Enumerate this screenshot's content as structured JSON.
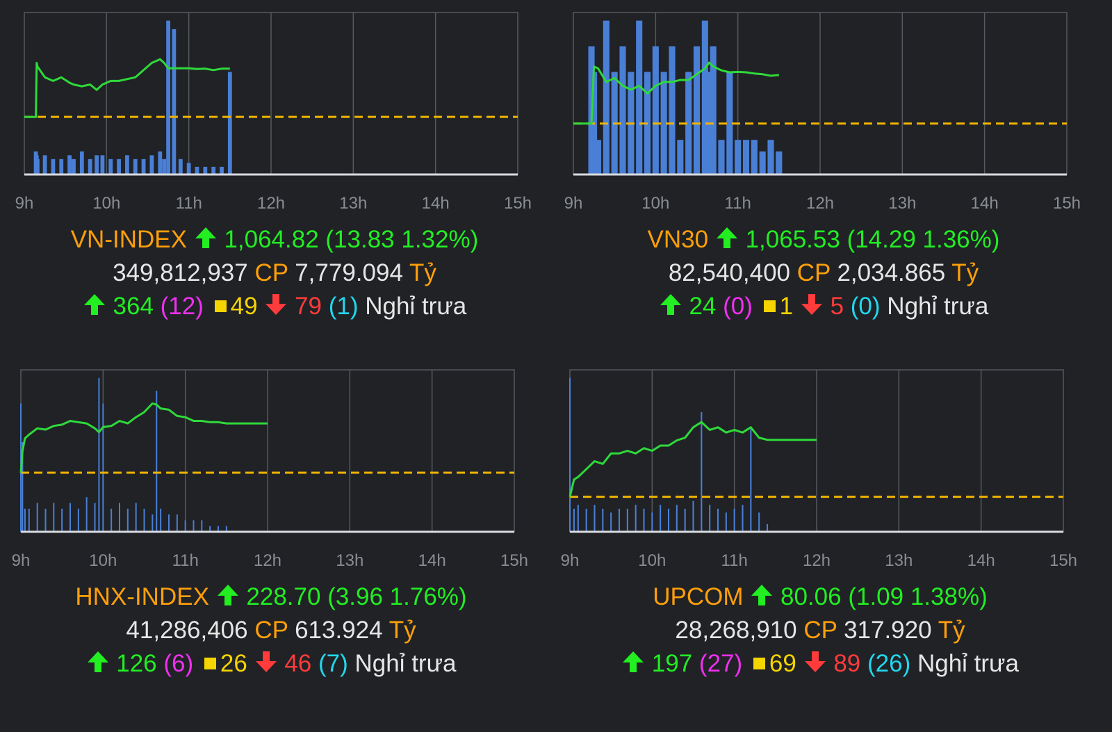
{
  "colors": {
    "background": "#202226",
    "grid": "#55585e",
    "price_line": "#2fd93a",
    "ref_line": "#f0b400",
    "volume_bar": "#4a7fd6",
    "up": "#22ee22",
    "down": "#ff3b3b",
    "unchanged": "#f5d400",
    "ceiling": "#f030f0",
    "floor": "#22d8ee",
    "index_name": "#ff9f0a",
    "unit_label": "#ff9f0a"
  },
  "axis_ticks": [
    "9h",
    "10h",
    "11h",
    "12h",
    "13h",
    "14h",
    "15h"
  ],
  "panels": [
    {
      "name": "VN-INDEX",
      "value": "1,064.82",
      "change": "(13.83 1.32%)",
      "volume": "349,812,937",
      "volume_unit": "CP",
      "turnover": "7,779.094",
      "turnover_unit": "Tỷ",
      "up": "364",
      "ceiling": "(12)",
      "unchanged": "49",
      "down": "79",
      "floor": "(1)",
      "status": "Nghỉ trưa"
    },
    {
      "name": "VN30",
      "value": "1,065.53",
      "change": "(14.29 1.36%)",
      "volume": "82,540,400",
      "volume_unit": "CP",
      "turnover": "2,034.865",
      "turnover_unit": "Tỷ",
      "up": "24",
      "ceiling": "(0)",
      "unchanged": "1",
      "down": "5",
      "floor": "(0)",
      "status": "Nghỉ trưa"
    },
    {
      "name": "HNX-INDEX",
      "value": "228.70",
      "change": "(3.96 1.76%)",
      "volume": "41,286,406",
      "volume_unit": "CP",
      "turnover": "613.924",
      "turnover_unit": "Tỷ",
      "up": "126",
      "ceiling": "(6)",
      "unchanged": "26",
      "down": "46",
      "floor": "(7)",
      "status": "Nghỉ trưa"
    },
    {
      "name": "UPCOM",
      "value": "80.06",
      "change": "(1.09 1.38%)",
      "volume": "28,268,910",
      "volume_unit": "CP",
      "turnover": "317.920",
      "turnover_unit": "Tỷ",
      "up": "197",
      "ceiling": "(27)",
      "unchanged": "69",
      "down": "89",
      "floor": "(26)",
      "status": "Nghỉ trưa"
    }
  ],
  "chart_data": [
    {
      "type": "line",
      "name": "VN-INDEX",
      "x_ticks": [
        "9h",
        "10h",
        "11h",
        "12h",
        "13h",
        "14h",
        "15h"
      ],
      "xlim": [
        9,
        15
      ],
      "ylim": [
        1035,
        1080
      ],
      "reference": 1051,
      "x": [
        9.0,
        9.14,
        9.15,
        9.16,
        9.25,
        9.35,
        9.45,
        9.55,
        9.6,
        9.7,
        9.8,
        9.88,
        9.95,
        10.05,
        10.15,
        10.25,
        10.35,
        10.45,
        10.55,
        10.65,
        10.7,
        10.75,
        10.82,
        10.9,
        11.0,
        11.1,
        11.2,
        11.3,
        11.4,
        11.5
      ],
      "series": [
        {
          "values": [
            1051,
            1051,
            1066,
            1065,
            1062,
            1061,
            1062,
            1060.5,
            1060,
            1059.5,
            1060,
            1058.5,
            1060,
            1061,
            1061,
            1061.5,
            1062,
            1064,
            1066,
            1067,
            1066,
            1064.5,
            1064.5,
            1064.5,
            1064.5,
            1064.3,
            1064.4,
            1064,
            1064.4,
            1064.4
          ]
        }
      ],
      "volume": [
        0,
        6,
        5,
        4,
        5,
        4,
        4,
        5,
        4,
        6,
        4,
        5,
        5,
        4,
        4,
        5,
        4,
        4,
        5,
        6,
        4,
        18,
        17,
        4,
        3,
        2,
        2,
        2,
        2,
        12
      ]
    },
    {
      "type": "line",
      "name": "VN30",
      "x_ticks": [
        "9h",
        "10h",
        "11h",
        "12h",
        "13h",
        "14h",
        "15h"
      ],
      "xlim": [
        9,
        15
      ],
      "ylim": [
        1038,
        1080
      ],
      "reference": 1051.2,
      "x": [
        9.0,
        9.22,
        9.25,
        9.3,
        9.4,
        9.5,
        9.6,
        9.7,
        9.8,
        9.9,
        10.0,
        10.1,
        10.2,
        10.3,
        10.4,
        10.5,
        10.6,
        10.65,
        10.7,
        10.8,
        10.9,
        11.0,
        11.1,
        11.2,
        11.3,
        11.4,
        11.5
      ],
      "series": [
        {
          "values": [
            1051.2,
            1051.2,
            1066,
            1065.5,
            1062,
            1063,
            1061,
            1060,
            1061,
            1059,
            1061,
            1062,
            1062,
            1062.5,
            1062.5,
            1064,
            1065.5,
            1067,
            1066,
            1065,
            1064.5,
            1064.6,
            1064.5,
            1064.2,
            1064,
            1063.6,
            1063.8
          ]
        }
      ],
      "volume": [
        0,
        5,
        4,
        3,
        6,
        4,
        5,
        4,
        6,
        4,
        5,
        4,
        5,
        3,
        4,
        5,
        6,
        4,
        5,
        3,
        4,
        3,
        3,
        3,
        2,
        3,
        2
      ]
    },
    {
      "type": "line",
      "name": "HNX-INDEX",
      "x_ticks": [
        "9h",
        "10h",
        "11h",
        "12h",
        "13h",
        "14h",
        "15h"
      ],
      "xlim": [
        9,
        15
      ],
      "ylim": [
        220,
        233
      ],
      "reference": 224.74,
      "x": [
        9.0,
        9.02,
        9.05,
        9.1,
        9.2,
        9.3,
        9.4,
        9.5,
        9.6,
        9.7,
        9.8,
        9.9,
        9.95,
        10.0,
        10.1,
        10.2,
        10.3,
        10.4,
        10.5,
        10.6,
        10.65,
        10.7,
        10.8,
        10.9,
        11.0,
        11.1,
        11.2,
        11.3,
        11.4,
        11.5,
        11.6,
        11.7,
        11.8,
        11.9,
        12.0
      ],
      "series": [
        {
          "values": [
            224.74,
            226.5,
            227.5,
            227.8,
            228.3,
            228.2,
            228.5,
            228.6,
            228.9,
            228.8,
            228.7,
            228.3,
            228.0,
            228.4,
            228.5,
            228.9,
            228.7,
            229.2,
            229.6,
            230.3,
            230.2,
            229.9,
            229.8,
            229.3,
            229.2,
            228.9,
            228.9,
            228.8,
            228.8,
            228.7,
            228.7,
            228.7,
            228.7,
            228.7,
            228.7
          ]
        }
      ],
      "volume": [
        10,
        7,
        4,
        4,
        5,
        4,
        5,
        4,
        5,
        4,
        6,
        5,
        12,
        10,
        4,
        5,
        4,
        5,
        4,
        3,
        11,
        4,
        3,
        3,
        2,
        2,
        2,
        1,
        1,
        1,
        0,
        0,
        0,
        0,
        0
      ]
    },
    {
      "type": "line",
      "name": "UPCOM",
      "x_ticks": [
        "9h",
        "10h",
        "11h",
        "12h",
        "13h",
        "14h",
        "15h"
      ],
      "xlim": [
        9,
        15
      ],
      "ylim": [
        78.3,
        81.4
      ],
      "reference": 78.97,
      "x": [
        9.0,
        9.05,
        9.1,
        9.2,
        9.3,
        9.4,
        9.5,
        9.6,
        9.7,
        9.8,
        9.9,
        10.0,
        10.1,
        10.2,
        10.3,
        10.4,
        10.5,
        10.6,
        10.7,
        10.8,
        10.9,
        11.0,
        11.1,
        11.2,
        11.3,
        11.4,
        11.5,
        11.6,
        11.7,
        11.8,
        11.9,
        12.0
      ],
      "series": [
        {
          "values": [
            78.97,
            79.3,
            79.35,
            79.5,
            79.65,
            79.6,
            79.8,
            79.8,
            79.85,
            79.8,
            79.9,
            79.85,
            79.95,
            79.95,
            80.05,
            80.1,
            80.3,
            80.4,
            80.25,
            80.3,
            80.2,
            80.25,
            80.2,
            80.3,
            80.1,
            80.06,
            80.06,
            80.06,
            80.06,
            80.06,
            80.06,
            80.06
          ]
        }
      ],
      "volume": [
        18,
        6,
        7,
        6,
        7,
        6,
        5,
        6,
        6,
        7,
        6,
        5,
        7,
        6,
        7,
        6,
        8,
        14,
        7,
        6,
        5,
        6,
        7,
        12,
        5,
        2,
        0,
        0,
        0,
        0,
        0,
        0
      ]
    }
  ]
}
